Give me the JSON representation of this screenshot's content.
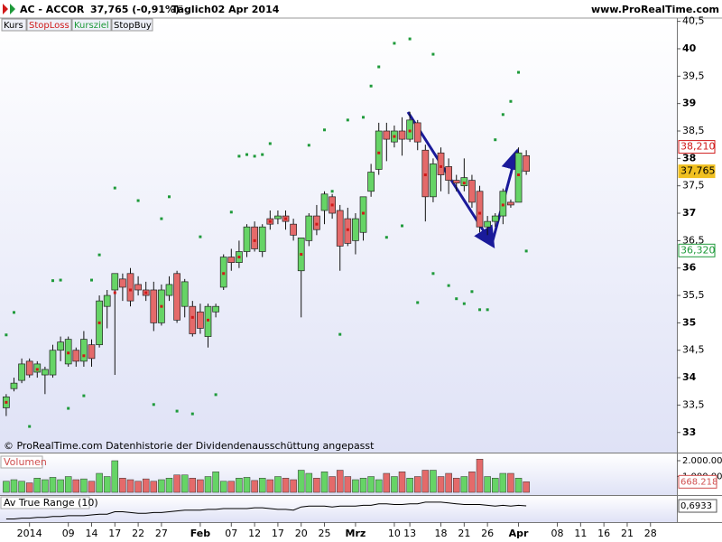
{
  "chart_data": [
    {
      "type": "candlestick",
      "title": "AC - ACCOR",
      "subtitle": "37,765 (-0,91%)",
      "interval": "Täglich",
      "date": "02 Apr 2014",
      "source": "www.ProRealTime.com",
      "note": "© ProRealTime.com Datenhistorie der Dividendenausschüttung angepasst",
      "xlim": [
        -0.8,
        86.4
      ],
      "xticks": [
        {
          "value": 3,
          "label": "2014"
        },
        {
          "value": 8,
          "label": "09"
        },
        {
          "value": 11,
          "label": "14"
        },
        {
          "value": 14,
          "label": "17"
        },
        {
          "value": 17,
          "label": "22"
        },
        {
          "value": 20,
          "label": "27"
        },
        {
          "value": 25,
          "label": "Feb"
        },
        {
          "value": 29,
          "label": "07"
        },
        {
          "value": 32,
          "label": "12"
        },
        {
          "value": 35,
          "label": "17"
        },
        {
          "value": 38,
          "label": "20"
        },
        {
          "value": 41,
          "label": "25"
        },
        {
          "value": 45,
          "label": "Mrz"
        },
        {
          "value": 50,
          "label": "10"
        },
        {
          "value": 52,
          "label": "13"
        },
        {
          "value": 56,
          "label": "18"
        },
        {
          "value": 59,
          "label": "21"
        },
        {
          "value": 62,
          "label": "26"
        },
        {
          "value": 66,
          "label": "Apr"
        },
        {
          "value": 71,
          "label": "08"
        },
        {
          "value": 74,
          "label": "11"
        },
        {
          "value": 77,
          "label": "16"
        },
        {
          "value": 80,
          "label": "21"
        },
        {
          "value": 83,
          "label": "28"
        }
      ],
      "ylim": [
        32.65,
        40.56
      ],
      "yticks": [
        33,
        {
          "value": 33.5,
          "label": "33,5"
        },
        34,
        {
          "value": 34.5,
          "label": "34,5"
        },
        35,
        {
          "value": 35.5,
          "label": "35,5"
        },
        36,
        {
          "value": 36.5,
          "label": "36,5"
        },
        37,
        {
          "value": 37.5,
          "label": "37,5"
        },
        38,
        {
          "value": 38.5,
          "label": "38,5"
        },
        39,
        {
          "value": 39.5,
          "label": "39,5"
        },
        40,
        {
          "value": 40.5,
          "label": "40,5"
        }
      ],
      "series": [
        {
          "name": "Kurs",
          "up_color": "#66d466",
          "down_color": "#e46a6a",
          "open": [
            33.45,
            33.8,
            33.95,
            34.3,
            34.1,
            34.05,
            34.05,
            34.5,
            34.25,
            34.5,
            34.3,
            34.6,
            34.6,
            35.3,
            35.6,
            35.8,
            35.9,
            35.7,
            35.6,
            35.6,
            35.0,
            35.5,
            35.9,
            35.3,
            35.3,
            35.2,
            34.75,
            35.2,
            35.65,
            36.2,
            36.1,
            36.3,
            36.75,
            36.3,
            36.9,
            36.9,
            36.95,
            36.8,
            35.95,
            36.5,
            36.95,
            37.05,
            37.3,
            37.05,
            36.9,
            36.5,
            36.65,
            37.4,
            37.8,
            38.5,
            38.3,
            38.5,
            38.35,
            38.65,
            38.15,
            37.3,
            38.1,
            37.85,
            37.6,
            37.5,
            37.6,
            37.4,
            36.75,
            36.85,
            36.95,
            37.2,
            37.2,
            38.05
          ],
          "high": [
            33.7,
            34.0,
            34.35,
            34.35,
            34.3,
            34.2,
            34.6,
            34.75,
            34.75,
            34.55,
            34.85,
            34.7,
            35.5,
            35.6,
            35.9,
            35.9,
            36.0,
            35.85,
            35.75,
            35.75,
            35.7,
            35.85,
            35.95,
            35.8,
            35.4,
            35.35,
            35.35,
            35.35,
            36.25,
            36.35,
            36.5,
            36.8,
            36.85,
            36.8,
            37.05,
            37.05,
            37.05,
            36.9,
            36.55,
            37.0,
            37.15,
            37.4,
            37.35,
            37.15,
            37.1,
            37.0,
            37.3,
            37.9,
            38.65,
            38.65,
            38.6,
            38.75,
            38.85,
            38.7,
            38.25,
            38.0,
            38.2,
            38.0,
            37.7,
            38.0,
            37.7,
            37.5,
            36.95,
            37.0,
            37.45,
            37.25,
            38.2,
            38.15
          ],
          "low": [
            33.3,
            33.75,
            33.9,
            34.0,
            34.0,
            33.7,
            34.0,
            34.3,
            34.2,
            34.2,
            34.2,
            34.2,
            34.55,
            34.9,
            34.05,
            35.4,
            35.3,
            35.5,
            35.4,
            34.85,
            34.95,
            35.4,
            35.0,
            35.1,
            34.75,
            34.8,
            34.55,
            35.1,
            35.6,
            35.95,
            36.0,
            36.2,
            36.3,
            36.2,
            36.7,
            36.8,
            36.7,
            36.5,
            35.1,
            36.4,
            36.6,
            36.8,
            36.9,
            35.95,
            36.4,
            36.25,
            36.5,
            37.3,
            37.7,
            37.95,
            38.2,
            38.05,
            38.3,
            38.15,
            36.85,
            37.2,
            37.4,
            37.35,
            37.4,
            37.4,
            37.1,
            36.65,
            36.6,
            36.75,
            36.8,
            37.1,
            37.2,
            37.7
          ],
          "close": [
            33.65,
            33.9,
            34.25,
            34.05,
            34.25,
            34.15,
            34.5,
            34.65,
            34.7,
            34.3,
            34.7,
            34.35,
            35.4,
            35.5,
            35.9,
            35.65,
            35.4,
            35.6,
            35.5,
            35.0,
            35.6,
            35.7,
            35.05,
            35.75,
            34.8,
            34.9,
            35.3,
            35.3,
            36.2,
            36.1,
            36.3,
            36.75,
            36.35,
            36.75,
            36.8,
            36.95,
            36.85,
            36.6,
            36.55,
            36.95,
            36.7,
            37.35,
            37.0,
            36.4,
            36.45,
            36.9,
            37.3,
            37.75,
            38.5,
            38.35,
            38.5,
            38.35,
            38.7,
            38.3,
            37.3,
            37.9,
            37.7,
            37.6,
            37.55,
            37.65,
            37.2,
            36.75,
            36.85,
            36.95,
            37.4,
            37.15,
            38.1,
            37.765
          ]
        },
        {
          "name": "StopLoss",
          "color": "#d01818",
          "x": [
            0,
            4,
            8,
            10,
            12,
            14,
            16,
            18,
            20,
            24,
            26,
            28,
            30,
            32,
            34,
            36,
            38,
            40,
            42,
            44,
            46,
            48,
            50,
            52,
            54,
            56,
            59,
            61,
            64,
            66
          ],
          "values": [
            33.55,
            34.15,
            34.45,
            34.4,
            35.0,
            35.55,
            35.6,
            35.55,
            35.3,
            35.1,
            35.05,
            35.9,
            36.2,
            36.5,
            36.85,
            36.9,
            36.25,
            36.8,
            37.15,
            36.7,
            37.0,
            38.1,
            38.4,
            38.5,
            37.7,
            37.85,
            37.55,
            37.0,
            37.15,
            37.7
          ]
        },
        {
          "name": "Kursziel",
          "color": "#1e9a3a",
          "x": [
            0,
            1,
            3,
            6,
            7,
            8,
            10,
            11,
            12,
            14,
            17,
            19,
            20,
            21,
            22,
            24,
            25,
            27,
            29,
            30,
            31,
            32,
            33,
            34,
            39,
            41,
            42,
            43,
            44,
            46,
            47,
            48,
            49,
            50,
            51,
            52,
            53,
            55,
            55,
            57,
            58,
            59,
            60,
            61,
            62,
            63,
            64,
            65,
            66,
            67
          ],
          "values": [
            34.78,
            35.19,
            33.11,
            35.77,
            35.78,
            33.44,
            33.67,
            35.78,
            36.24,
            37.46,
            37.23,
            33.51,
            36.9,
            37.3,
            33.39,
            33.34,
            36.57,
            33.69,
            37.02,
            38.04,
            38.07,
            38.04,
            38.07,
            38.27,
            38.24,
            38.52,
            37.4,
            34.79,
            38.7,
            38.75,
            39.32,
            39.67,
            36.56,
            40.1,
            36.77,
            40.18,
            35.37,
            35.9,
            39.9,
            35.68,
            35.44,
            35.35,
            35.57,
            35.24,
            35.24,
            38.34,
            38.8,
            39.04,
            39.57,
            36.31
          ]
        },
        {
          "name": "StopBuy",
          "color": "#000000",
          "x": [],
          "values": []
        }
      ],
      "price_labels": [
        {
          "value": 38.21,
          "label": "38,210",
          "color": "#d01818"
        },
        {
          "value": 37.765,
          "label": "37,765",
          "color": "#f0c020"
        },
        {
          "value": 36.32,
          "label": "36,320",
          "color": "#1e9a3a"
        }
      ]
    },
    {
      "type": "bar",
      "title": "Volumen",
      "up_color": "#66d466",
      "down_color": "#e46a6a",
      "ylim": [
        -170000,
        2400000
      ],
      "yticks": [
        {
          "value": 2000000,
          "label": "2.000.000"
        },
        {
          "value": 1000000,
          "label": "1.000.000"
        }
      ],
      "values": [
        700000,
        800000,
        700000,
        600000,
        900000,
        800000,
        950000,
        800000,
        1000000,
        800000,
        850000,
        700000,
        1200000,
        1000000,
        2000000,
        900000,
        800000,
        700000,
        850000,
        700000,
        800000,
        900000,
        1100000,
        1100000,
        900000,
        800000,
        1000000,
        1300000,
        700000,
        700000,
        900000,
        950000,
        750000,
        900000,
        800000,
        1000000,
        900000,
        800000,
        1400000,
        1200000,
        900000,
        1300000,
        1000000,
        1400000,
        1000000,
        800000,
        900000,
        1000000,
        800000,
        1200000,
        1000000,
        1300000,
        900000,
        1000000,
        1400000,
        1400000,
        1000000,
        1200000,
        900000,
        1000000,
        1300000,
        2100000,
        1000000,
        900000,
        1200000,
        1200000,
        900000,
        668218
      ],
      "current_label": {
        "value": 668218,
        "label": "668.218"
      }
    },
    {
      "type": "line",
      "title": "Av True Range (10)",
      "color": "#000000",
      "ylim": [
        0.49,
        0.818
      ],
      "values": [
        0.53,
        0.53,
        0.54,
        0.54,
        0.55,
        0.55,
        0.56,
        0.56,
        0.57,
        0.57,
        0.57,
        0.58,
        0.59,
        0.59,
        0.62,
        0.62,
        0.61,
        0.6,
        0.6,
        0.61,
        0.61,
        0.62,
        0.63,
        0.64,
        0.64,
        0.64,
        0.65,
        0.65,
        0.66,
        0.66,
        0.66,
        0.66,
        0.67,
        0.67,
        0.66,
        0.65,
        0.65,
        0.64,
        0.68,
        0.69,
        0.69,
        0.69,
        0.68,
        0.69,
        0.69,
        0.69,
        0.7,
        0.7,
        0.72,
        0.72,
        0.71,
        0.71,
        0.72,
        0.72,
        0.74,
        0.74,
        0.74,
        0.73,
        0.72,
        0.71,
        0.71,
        0.71,
        0.7,
        0.69,
        0.7,
        0.69,
        0.7,
        0.6933
      ],
      "current_label": {
        "value": 0.6933,
        "label": "0,6933"
      }
    }
  ]
}
